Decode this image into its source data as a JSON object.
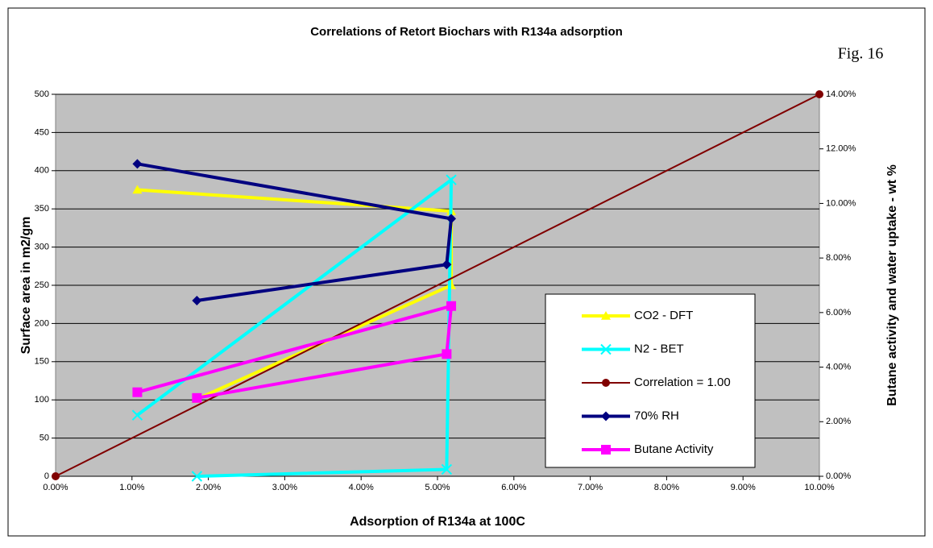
{
  "chart_data": {
    "type": "line",
    "title": "Correlations of Retort Biochars with R134a adsorption",
    "annotation": "Fig. 16",
    "xlabel": "Adsorption of R134a at 100C",
    "ylabel": "Surface area in m2/gm",
    "y2label": "Butane activity and water uptake - wt %",
    "xlim": [
      0,
      10
    ],
    "xticks": [
      {
        "value": 0,
        "label": "0.00%"
      },
      {
        "value": 1,
        "label": "1.00%"
      },
      {
        "value": 2,
        "label": "2.00%"
      },
      {
        "value": 3,
        "label": "3.00%"
      },
      {
        "value": 4,
        "label": "4.00%"
      },
      {
        "value": 5,
        "label": "5.00%"
      },
      {
        "value": 6,
        "label": "6.00%"
      },
      {
        "value": 7,
        "label": "7.00%"
      },
      {
        "value": 8,
        "label": "8.00%"
      },
      {
        "value": 9,
        "label": "9.00%"
      },
      {
        "value": 10,
        "label": "10.00%"
      }
    ],
    "ylim": [
      0,
      500
    ],
    "yticks": [
      0,
      50,
      100,
      150,
      200,
      250,
      300,
      350,
      400,
      450,
      500
    ],
    "y2lim": [
      0,
      14
    ],
    "y2ticks": [
      {
        "value": 0,
        "label": "0.00%"
      },
      {
        "value": 2,
        "label": "2.00%"
      },
      {
        "value": 4,
        "label": "4.00%"
      },
      {
        "value": 6,
        "label": "6.00%"
      },
      {
        "value": 8,
        "label": "8.00%"
      },
      {
        "value": 10,
        "label": "10.00%"
      },
      {
        "value": 12,
        "label": "12.00%"
      },
      {
        "value": 14,
        "label": "14.00%"
      }
    ],
    "grid": true,
    "legend": "right",
    "series": [
      {
        "name": "CO2 - DFT",
        "color": "#ffff00",
        "marker": "triangle",
        "x": [
          1.07,
          5.18,
          5.18,
          1.85
        ],
        "values": [
          375,
          347,
          250,
          101
        ]
      },
      {
        "name": "N2 - BET",
        "color": "#00ffff",
        "marker": "x",
        "x": [
          1.07,
          5.18,
          5.12,
          1.85
        ],
        "values": [
          80,
          388,
          9,
          0
        ]
      },
      {
        "name": "Correlation = 1.00",
        "color": "#800000",
        "marker": "circle",
        "axis": "y2",
        "x": [
          0,
          10
        ],
        "values": [
          0,
          14
        ]
      },
      {
        "name": "70% RH",
        "color": "#000080",
        "marker": "diamond",
        "axis": "y2",
        "x": [
          1.07,
          5.18,
          5.12,
          1.85
        ],
        "values": [
          11.45,
          9.44,
          7.76,
          6.44
        ]
      },
      {
        "name": "Butane Activity",
        "color": "#ff00ff",
        "marker": "square",
        "axis": "y2",
        "x": [
          1.07,
          5.18,
          5.12,
          1.85
        ],
        "values": [
          3.08,
          6.24,
          4.48,
          2.87
        ]
      }
    ]
  }
}
